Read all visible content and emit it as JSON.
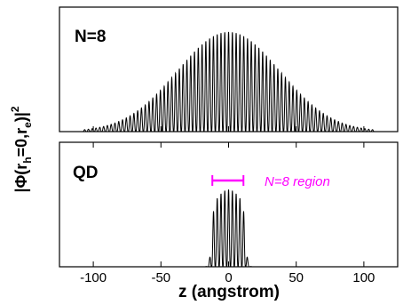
{
  "chart_data": {
    "type": "line",
    "xlabel": "z (angstrom)",
    "ylabel": {
      "base": "|Φ(r",
      "sub1": "h",
      "mid": "=0,r",
      "sub2": "e",
      "close": ")|",
      "sup": "2"
    },
    "xlim": [
      -125,
      125
    ],
    "xticks": [
      "-100",
      "-50",
      "0",
      "50",
      "100"
    ],
    "xtick_values": [
      -100,
      -50,
      0,
      50,
      100
    ],
    "line_color": "#000000",
    "panels": [
      {
        "title": "N=8",
        "ylim": [
          0,
          1.0
        ],
        "envelope": {
          "shape": "gaussian",
          "center": 0,
          "sigma": 38,
          "amplitude": 0.8,
          "support": [
            -108,
            108
          ]
        },
        "oscillation_period": 2.8
      },
      {
        "title": "QD",
        "ylim": [
          0,
          1.0
        ],
        "envelope": {
          "shape": "plateau",
          "center": 0,
          "half_width": 10,
          "edge_decay": 2.8,
          "amplitude": 0.62,
          "support": [
            -110,
            80
          ]
        },
        "oscillation_period": 2.8,
        "annotation": {
          "text": "N=8 region",
          "x_range": [
            -12,
            11
          ],
          "color": "#ff00ff"
        }
      }
    ]
  }
}
